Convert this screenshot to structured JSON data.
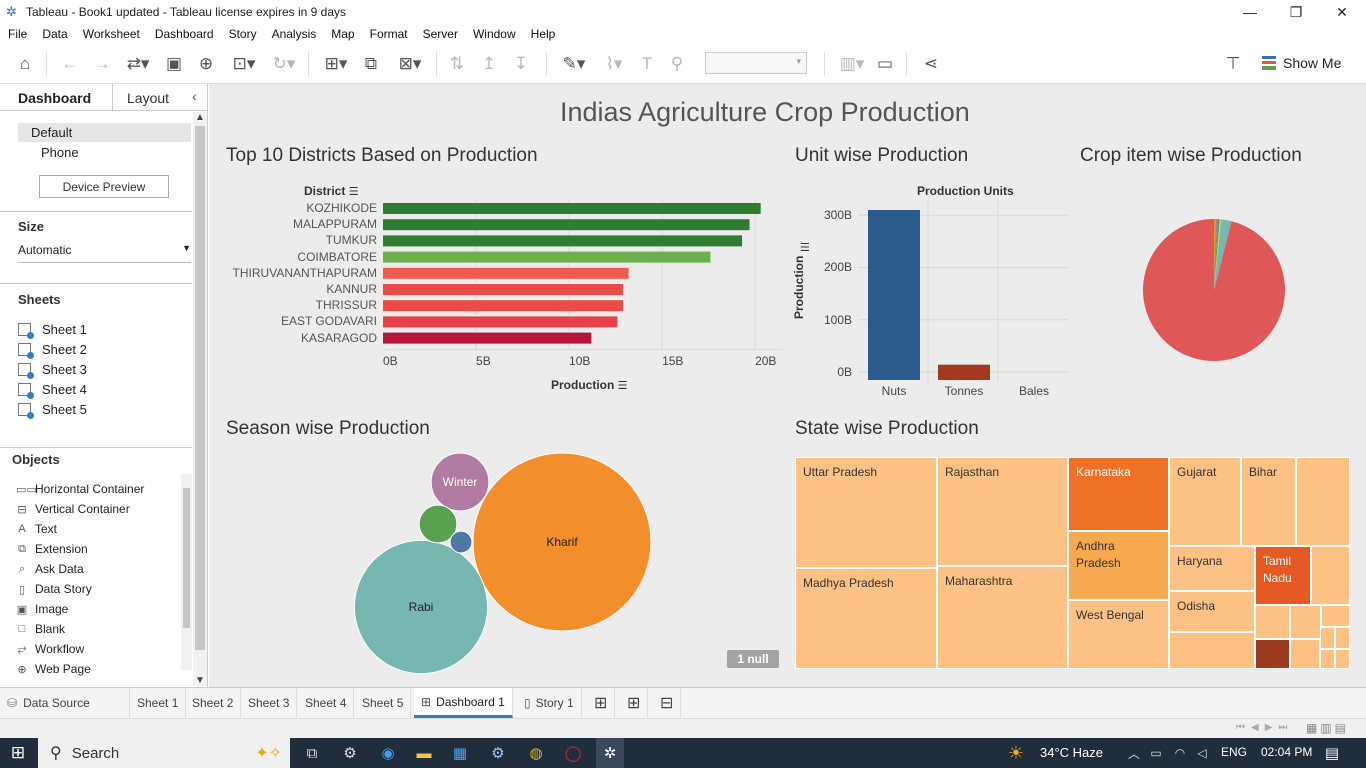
{
  "window": {
    "title": "Tableau - Book1 updated - Tableau license expires in 9 days"
  },
  "menu": [
    "File",
    "Data",
    "Worksheet",
    "Dashboard",
    "Story",
    "Analysis",
    "Map",
    "Format",
    "Server",
    "Window",
    "Help"
  ],
  "toolbar": {
    "show_me": "Show Me"
  },
  "left_pane": {
    "tab_dashboard": "Dashboard",
    "tab_layout": "Layout",
    "device_default": "Default",
    "device_phone": "Phone",
    "device_preview": "Device Preview",
    "size_title": "Size",
    "size_value": "Automatic",
    "sheets_title": "Sheets",
    "sheets": [
      "Sheet 1",
      "Sheet 2",
      "Sheet 3",
      "Sheet 4",
      "Sheet 5"
    ],
    "objects_title": "Objects",
    "objects": [
      {
        "label": "Horizontal Container",
        "icon": "▭▭"
      },
      {
        "label": "Vertical Container",
        "icon": "⊟"
      },
      {
        "label": "Text",
        "icon": "A"
      },
      {
        "label": "Extension",
        "icon": "⧉"
      },
      {
        "label": "Ask Data",
        "icon": "⌕"
      },
      {
        "label": "Data Story",
        "icon": "▯"
      },
      {
        "label": "Image",
        "icon": "▣"
      },
      {
        "label": "Blank",
        "icon": "□"
      },
      {
        "label": "Workflow",
        "icon": "⥂"
      },
      {
        "label": "Web Page",
        "icon": "⊕"
      }
    ]
  },
  "dashboard": {
    "title": "Indias Agriculture Crop Production",
    "ws_districts": "Top 10 Districts Based on Production",
    "ws_unit": "Unit wise Production",
    "ws_crop": "Crop item wise Production",
    "ws_season": "Season wise Production",
    "ws_state": "State wise Production",
    "null_badge": "1 null"
  },
  "chart_data": [
    {
      "type": "bar",
      "orientation": "horizontal",
      "row_header": "District",
      "categories": [
        "KOZHIKODE",
        "MALAPPURAM",
        "TUMKUR",
        "COIMBATORE",
        "THIRUVANANTHAPURAM",
        "KANNUR",
        "THRISSUR",
        "EAST GODAVARI",
        "KASARAGOD"
      ],
      "values": [
        20.3,
        19.7,
        19.3,
        17.6,
        13.2,
        12.9,
        12.9,
        12.6,
        11.2
      ],
      "colors": [
        "#2e7d32",
        "#2e7d32",
        "#2e7d32",
        "#6ab04c",
        "#ef5b4c",
        "#ec4a47",
        "#ec4a47",
        "#e64048",
        "#b5153b"
      ],
      "xlabel": "Production",
      "x_ticks": [
        "0B",
        "5B",
        "10B",
        "15B",
        "20B"
      ],
      "xlim": [
        0,
        21.5
      ]
    },
    {
      "type": "bar",
      "orientation": "vertical",
      "title": "Production Units",
      "categories": [
        "Nuts",
        "Tonnes",
        "Bales"
      ],
      "values": [
        310,
        14,
        0
      ],
      "colors": [
        "#2a5b8c",
        "#a3391f",
        "#888888"
      ],
      "ylabel": "Production",
      "y_ticks": [
        "0B",
        "100B",
        "200B",
        "300B"
      ],
      "ylim": [
        0,
        310
      ]
    },
    {
      "type": "pie",
      "slices": [
        {
          "value": 96.0,
          "color": "#e05758"
        },
        {
          "value": 0.4,
          "color": "#f28e2b"
        },
        {
          "value": 0.4,
          "color": "#9b7bb3"
        },
        {
          "value": 0.5,
          "color": "#59a14f"
        },
        {
          "value": 0.3,
          "color": "#edc948"
        },
        {
          "value": 2.4,
          "color": "#76b7b2"
        }
      ]
    },
    {
      "type": "bubble",
      "bubbles": [
        {
          "label": "Kharif",
          "value": 100,
          "color": "#f28e2b"
        },
        {
          "label": "Rabi",
          "value": 56,
          "color": "#76b7b2"
        },
        {
          "label": "Winter",
          "value": 10.5,
          "color": "#b07aa1"
        },
        {
          "label": "",
          "value": 4.5,
          "color": "#59a14f"
        },
        {
          "label": "",
          "value": 1.5,
          "color": "#4e79a7"
        }
      ]
    },
    {
      "type": "treemap",
      "cells": [
        {
          "label": "Uttar Pradesh",
          "color": "#fdc283"
        },
        {
          "label": "Madhya Pradesh",
          "color": "#fdc283"
        },
        {
          "label": "Rajasthan",
          "color": "#fdc283"
        },
        {
          "label": "Maharashtra",
          "color": "#fdc283"
        },
        {
          "label": "Karnataka",
          "color": "#ee7125"
        },
        {
          "label": "Andhra Pradesh",
          "color": "#f7a94f"
        },
        {
          "label": "West Bengal",
          "color": "#fdc283"
        },
        {
          "label": "Gujarat",
          "color": "#fdc283"
        },
        {
          "label": "Bihar",
          "color": "#fdc283"
        },
        {
          "label": "Haryana",
          "color": "#fdc283"
        },
        {
          "label": "Tamil Nadu",
          "color": "#e55a22"
        },
        {
          "label": "Odisha",
          "color": "#fdc283"
        }
      ]
    }
  ],
  "sheet_tabs": [
    "Data Source",
    "Sheet 1",
    "Sheet 2",
    "Sheet 3",
    "Sheet 4",
    "Sheet 5",
    "Dashboard 1",
    "Story 1"
  ],
  "taskbar": {
    "search": "Search",
    "weather": "34°C  Haze",
    "lang": "ENG",
    "time": "02:04 PM"
  }
}
